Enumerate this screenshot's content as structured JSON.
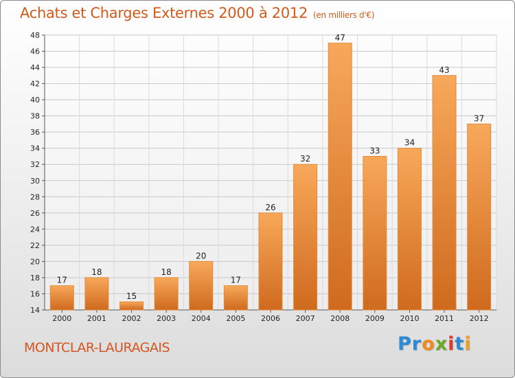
{
  "title": "Achats et Charges Externes 2000 à 2012",
  "unit": "(en milliers d'€)",
  "commune": "MONTCLAR-LAURAGAIS",
  "logo": {
    "letters": [
      "P",
      "r",
      "o",
      "x",
      "i",
      "t",
      "i"
    ],
    "colors": [
      "#2a8ad6",
      "#2a8ad6",
      "#f08a1c",
      "#6aa82a",
      "#e23a2a",
      "#2a8ad6",
      "#f0a01c"
    ]
  },
  "colors": {
    "bar_light": "#f8a85a",
    "bar_dark": "#cf6a1e",
    "title": "#d05a1a"
  },
  "chart_data": {
    "type": "bar",
    "categories": [
      "2000",
      "2001",
      "2002",
      "2003",
      "2004",
      "2005",
      "2006",
      "2007",
      "2008",
      "2009",
      "2010",
      "2011",
      "2012"
    ],
    "values": [
      17,
      18,
      15,
      18,
      20,
      17,
      26,
      32,
      47,
      33,
      34,
      43,
      37
    ],
    "ylim": [
      14,
      48
    ],
    "yticks": [
      14,
      16,
      18,
      20,
      22,
      24,
      26,
      28,
      30,
      32,
      34,
      36,
      38,
      40,
      42,
      44,
      46,
      48
    ],
    "grid": true
  }
}
